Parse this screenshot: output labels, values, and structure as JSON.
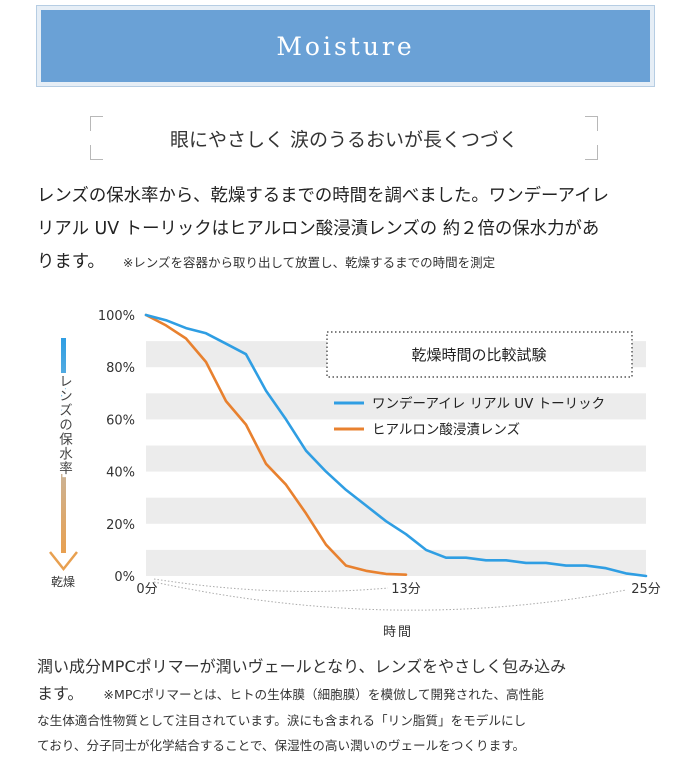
{
  "banner": {
    "title": "Moisture"
  },
  "headline": "眼にやさしく 涙のうるおいが長くつづく",
  "intro": {
    "line1": "レンズの保水率から、乾燥するまでの時間を調べました。ワンデーアイレ",
    "line2": "リアル UV トーリックはヒアルロン酸浸漬レンズの 約２倍の保水力があ",
    "line3": "ります。",
    "note": "※レンズを容器から取り出して放置し、乾燥するまでの時間を測定"
  },
  "chart_data": {
    "type": "line",
    "title": "乾燥時間の比較試験",
    "ylabel": "レンズの保水率",
    "ylabel_bottom": "乾燥",
    "xlabel": "時間",
    "ylim": [
      0,
      100
    ],
    "xlim": [
      0,
      25
    ],
    "y_ticks": [
      "0%",
      "20%",
      "40%",
      "60%",
      "80%",
      "100%"
    ],
    "x_ticks": [
      {
        "value": 0,
        "label": "0分"
      },
      {
        "value": 13,
        "label": "13分"
      },
      {
        "value": 25,
        "label": "25分"
      }
    ],
    "grid": "horizontal bands",
    "legend": "top-right",
    "series": [
      {
        "name": "ワンデーアイレ リアル UV トーリック",
        "color": "#2f9ee3",
        "points": [
          [
            0,
            100
          ],
          [
            1,
            98
          ],
          [
            2,
            95
          ],
          [
            3,
            93
          ],
          [
            4,
            89
          ],
          [
            5,
            85
          ],
          [
            6,
            71
          ],
          [
            7,
            60
          ],
          [
            8,
            48
          ],
          [
            9,
            40
          ],
          [
            10,
            33
          ],
          [
            11,
            27
          ],
          [
            12,
            21
          ],
          [
            13,
            16
          ],
          [
            14,
            10
          ],
          [
            15,
            7
          ],
          [
            16,
            7
          ],
          [
            17,
            6
          ],
          [
            18,
            6
          ],
          [
            19,
            5
          ],
          [
            20,
            5
          ],
          [
            21,
            4
          ],
          [
            22,
            4
          ],
          [
            23,
            3
          ],
          [
            24,
            1
          ],
          [
            25,
            0
          ]
        ]
      },
      {
        "name": "ヒアルロン酸浸漬レンズ",
        "color": "#e8812f",
        "points": [
          [
            0,
            100
          ],
          [
            1,
            96
          ],
          [
            2,
            91
          ],
          [
            3,
            82
          ],
          [
            4,
            67
          ],
          [
            5,
            58
          ],
          [
            6,
            43
          ],
          [
            7,
            35
          ],
          [
            8,
            24
          ],
          [
            9,
            12
          ],
          [
            10,
            4
          ],
          [
            11,
            2
          ],
          [
            12,
            0.8
          ],
          [
            13,
            0.5
          ]
        ]
      }
    ]
  },
  "bottom": {
    "lead_a": "潤い成分MPCポリマーが潤いヴェールとなり、レンズをやさしく包み込み",
    "lead_b": "ます。",
    "note_a": "※MPCポリマーとは、ヒトの生体膜（細胞膜）を模倣して開発された、高性能",
    "note_b": "な生体適合性物質として注目されています。涙にも含まれる「リン脂質」をモデルにし",
    "note_c": "ており、分子同士が化学結合することで、保湿性の高い潤いのヴェールをつくります。"
  }
}
